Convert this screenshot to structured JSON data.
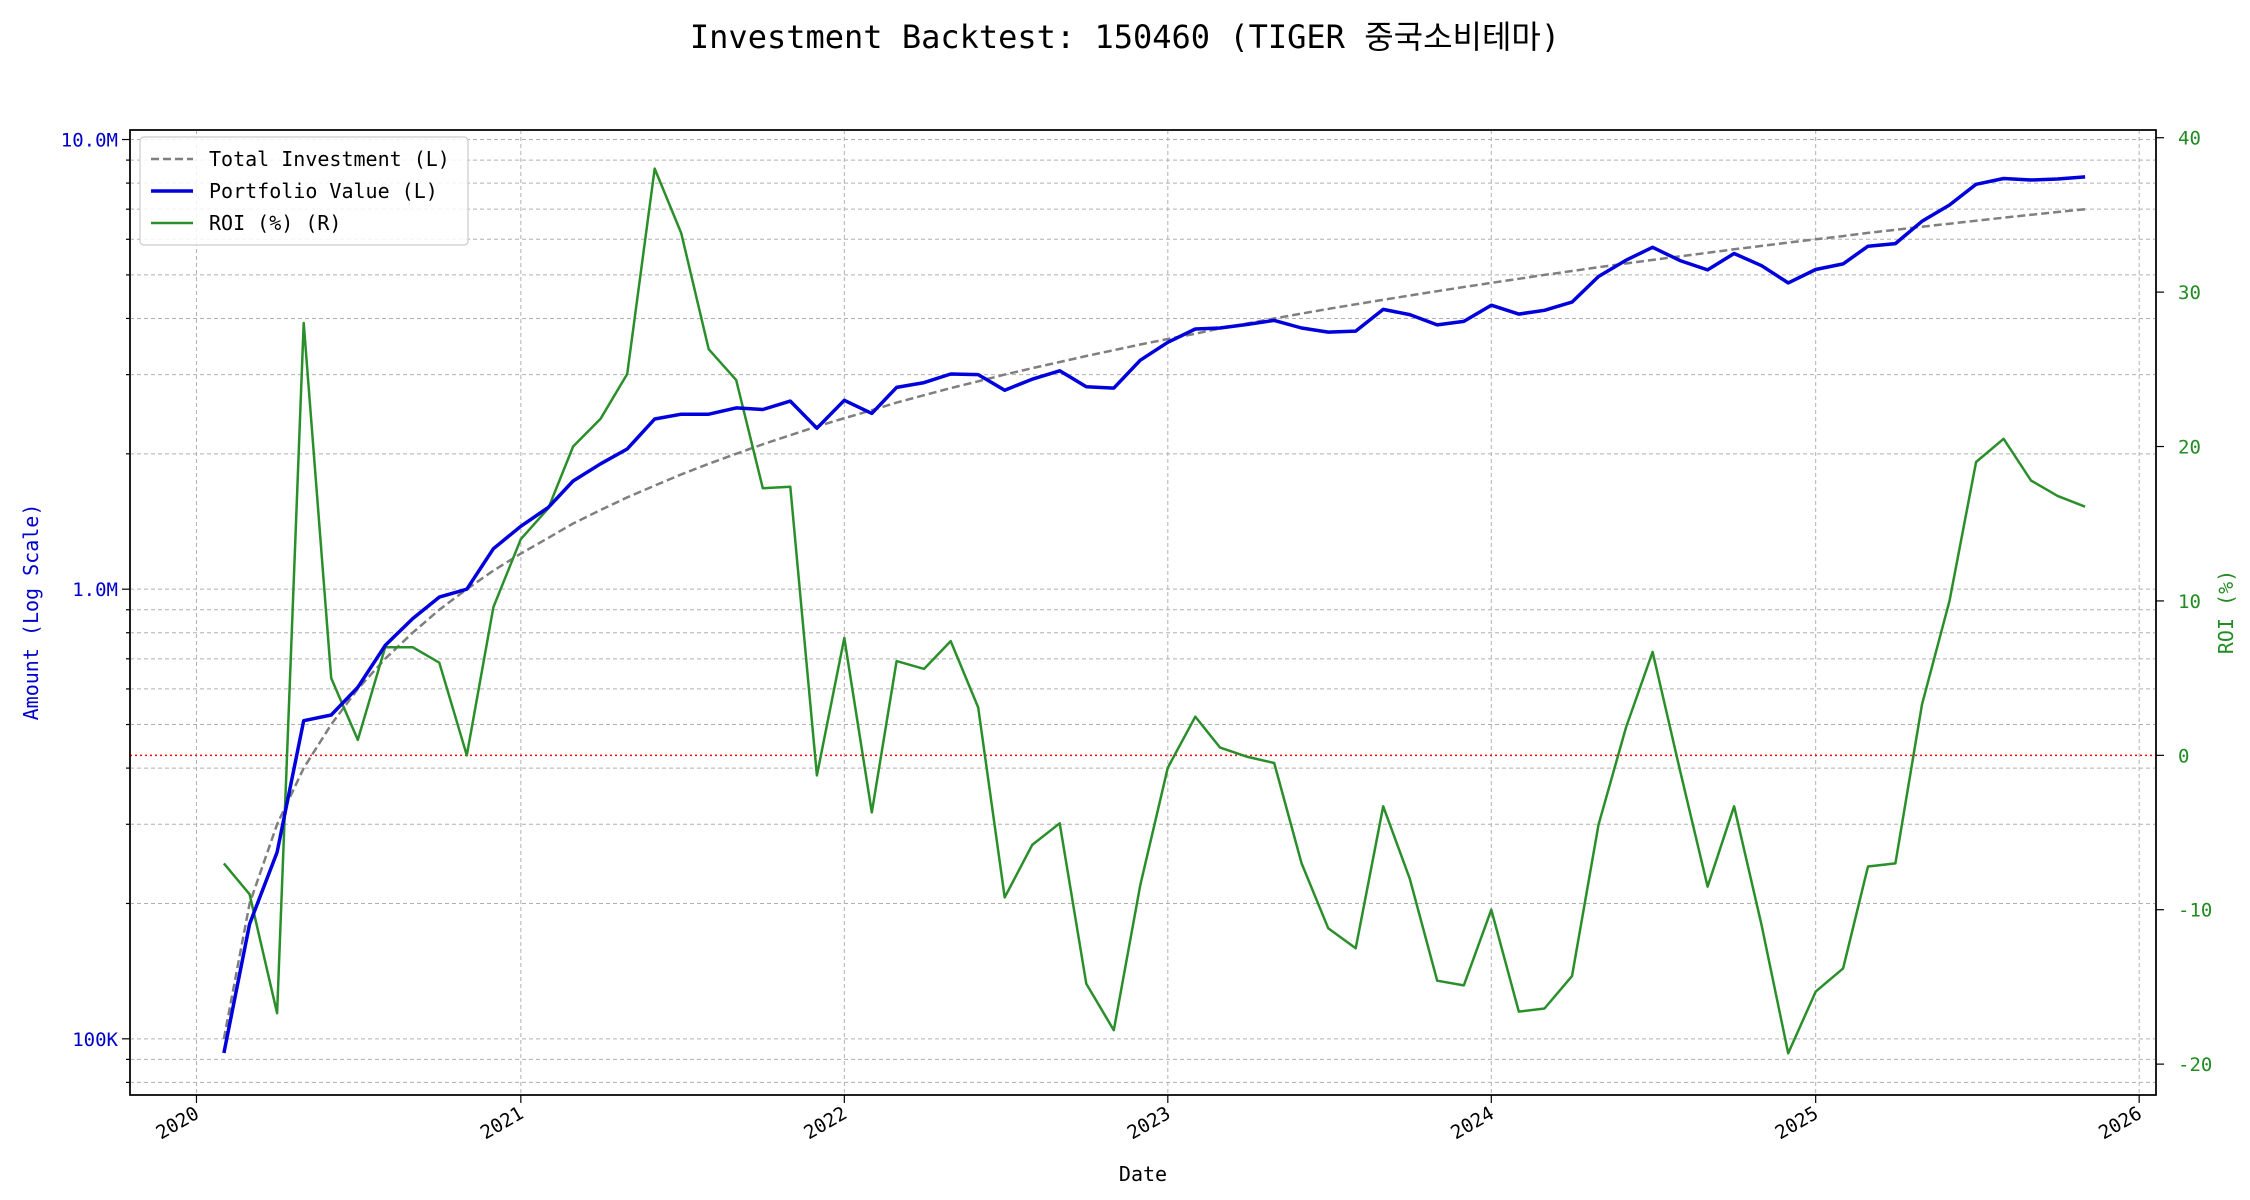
{
  "chart_data": {
    "type": "line",
    "title": "Investment Backtest: 150460 (TIGER 중국소비테마)",
    "xlabel": "Date",
    "ylabel_left": "Amount (Log Scale)",
    "ylabel_right": "ROI (%)",
    "y_left_scale": "log",
    "y_left_ticks": [
      {
        "value": 100000,
        "label": "100K"
      },
      {
        "value": 1000000,
        "label": "1.0M"
      },
      {
        "value": 10000000,
        "label": "10.0M"
      }
    ],
    "y_left_range": [
      75000,
      10500000
    ],
    "y_right_ticks": [
      -20,
      -10,
      0,
      10,
      20,
      30,
      40
    ],
    "y_right_range": [
      -22,
      40.5
    ],
    "x_range": [
      "2019-10-18",
      "2026-01-20"
    ],
    "x_ticks": [
      {
        "date": "2020-01-01",
        "label": "2020"
      },
      {
        "date": "2021-01-01",
        "label": "2021"
      },
      {
        "date": "2022-01-01",
        "label": "2022"
      },
      {
        "date": "2023-01-01",
        "label": "2023"
      },
      {
        "date": "2024-01-01",
        "label": "2024"
      },
      {
        "date": "2025-01-01",
        "label": "2025"
      },
      {
        "date": "2026-01-01",
        "label": "2026"
      }
    ],
    "grid": true,
    "legend_position": "top-left",
    "zero_line": {
      "value": 0,
      "axis": "right",
      "color": "#ff0000",
      "style": "dotted"
    },
    "colors": {
      "left_axis": "#0000cc",
      "right_axis": "#228b22",
      "total_investment": "#7f7f7f",
      "portfolio_value": "#0000dd",
      "roi": "#2a8f2a"
    },
    "dates": [
      "2020-02-01",
      "2020-03-01",
      "2020-04-01",
      "2020-05-01",
      "2020-06-01",
      "2020-07-01",
      "2020-08-01",
      "2020-09-01",
      "2020-10-01",
      "2020-11-01",
      "2020-12-01",
      "2021-01-01",
      "2021-02-01",
      "2021-03-01",
      "2021-04-01",
      "2021-05-01",
      "2021-06-01",
      "2021-07-01",
      "2021-08-01",
      "2021-09-01",
      "2021-10-01",
      "2021-11-01",
      "2021-12-01",
      "2022-01-01",
      "2022-02-01",
      "2022-03-01",
      "2022-04-01",
      "2022-05-01",
      "2022-06-01",
      "2022-07-01",
      "2022-08-01",
      "2022-09-01",
      "2022-10-01",
      "2022-11-01",
      "2022-12-01",
      "2023-01-01",
      "2023-02-01",
      "2023-03-01",
      "2023-04-01",
      "2023-05-01",
      "2023-06-01",
      "2023-07-01",
      "2023-08-01",
      "2023-09-01",
      "2023-10-01",
      "2023-11-01",
      "2023-12-01",
      "2024-01-01",
      "2024-02-01",
      "2024-03-01",
      "2024-04-01",
      "2024-05-01",
      "2024-06-01",
      "2024-07-01",
      "2024-08-01",
      "2024-09-01",
      "2024-10-01",
      "2024-11-01",
      "2024-12-01",
      "2025-01-01",
      "2025-02-01",
      "2025-03-01",
      "2025-04-01",
      "2025-05-01",
      "2025-06-01",
      "2025-07-01",
      "2025-08-01",
      "2025-09-01",
      "2025-10-01",
      "2025-11-01"
    ],
    "series": [
      {
        "name": "Total Investment (L)",
        "axis": "left",
        "style": "dashed",
        "values": [
          100000,
          200000,
          300000,
          400000,
          500000,
          600000,
          700000,
          800000,
          900000,
          1000000,
          1100000,
          1200000,
          1300000,
          1400000,
          1500000,
          1600000,
          1700000,
          1800000,
          1900000,
          2000000,
          2100000,
          2200000,
          2300000,
          2400000,
          2500000,
          2600000,
          2700000,
          2800000,
          2900000,
          3000000,
          3100000,
          3200000,
          3300000,
          3400000,
          3500000,
          3600000,
          3700000,
          3800000,
          3900000,
          4000000,
          4100000,
          4200000,
          4300000,
          4400000,
          4500000,
          4600000,
          4700000,
          4800000,
          4900000,
          5000000,
          5100000,
          5200000,
          5300000,
          5400000,
          5500000,
          5600000,
          5700000,
          5800000,
          5900000,
          6000000,
          6100000,
          6200000,
          6300000,
          6400000,
          6500000,
          6600000,
          6700000,
          6800000,
          6900000,
          7000000
        ]
      },
      {
        "name": "Portfolio Value (L)",
        "axis": "left",
        "style": "solid",
        "values": [
          93000,
          180000,
          260000,
          510000,
          525000,
          605000,
          750000,
          860000,
          960000,
          1000000,
          1230000,
          1380000,
          1520000,
          1740000,
          1900000,
          2050000,
          2390000,
          2450000,
          2450000,
          2530000,
          2510000,
          2620000,
          2280000,
          2630000,
          2460000,
          2810000,
          2880000,
          3010000,
          3000000,
          2770000,
          2930000,
          3060000,
          2820000,
          2800000,
          3230000,
          3540000,
          3790000,
          3810000,
          3880000,
          3960000,
          3810000,
          3730000,
          3750000,
          4190000,
          4080000,
          3870000,
          3940000,
          4280000,
          4090000,
          4170000,
          4350000,
          4960000,
          5390000,
          5760000,
          5380000,
          5130000,
          5580000,
          5240000,
          4800000,
          5140000,
          5290000,
          5790000,
          5870000,
          6580000,
          7150000,
          7950000,
          8190000,
          8130000,
          8170000,
          8260000
        ]
      },
      {
        "name": "ROI (%) (R)",
        "axis": "right",
        "style": "solid",
        "values": [
          -7.0,
          -9.0,
          -16.7,
          28.0,
          5.0,
          1.0,
          7.0,
          7.0,
          6.0,
          0.0,
          9.6,
          14.0,
          16.0,
          20.0,
          21.8,
          24.7,
          38.0,
          33.8,
          26.3,
          24.3,
          17.3,
          17.4,
          -1.3,
          7.6,
          -3.7,
          6.1,
          5.6,
          7.4,
          3.1,
          -9.2,
          -5.8,
          -4.4,
          -14.8,
          -17.8,
          -8.4,
          -0.8,
          2.5,
          0.5,
          -0.1,
          -0.5,
          -7.0,
          -11.2,
          -12.5,
          -3.3,
          -8.0,
          -14.6,
          -14.9,
          -10.0,
          -16.6,
          -16.4,
          -14.3,
          -4.5,
          1.8,
          6.7,
          -1.0,
          -8.5,
          -3.3,
          -11.0,
          -19.3,
          -15.3,
          -13.8,
          -7.2,
          -7.0,
          3.3,
          10.0,
          19.0,
          20.5,
          17.8,
          16.8,
          16.1
        ]
      }
    ]
  }
}
